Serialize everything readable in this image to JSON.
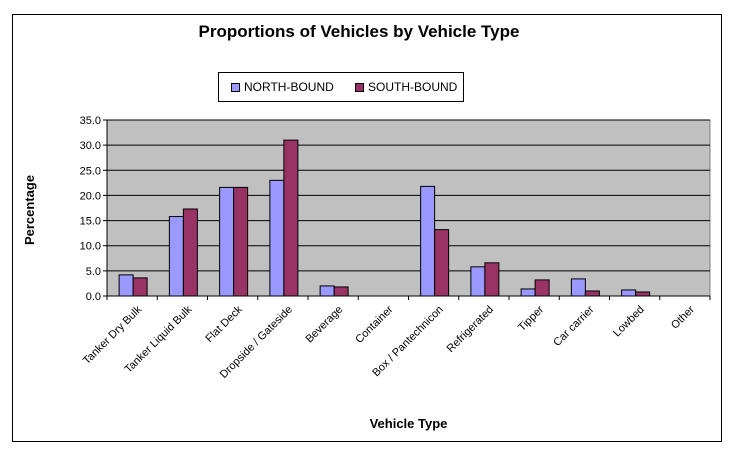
{
  "chart_data": {
    "type": "bar",
    "title": "Proportions of Vehicles by Vehicle Type",
    "xlabel": "Vehicle Type",
    "ylabel": "Percentage",
    "ylim": [
      0,
      35
    ],
    "yticks": [
      "0.0",
      "5.0",
      "10.0",
      "15.0",
      "20.0",
      "25.0",
      "30.0",
      "35.0"
    ],
    "grid": true,
    "legend_position": "top",
    "categories": [
      "Tanker Dry Bulk",
      "Tanker Liquid Bulk",
      "Flat Deck",
      "Dropside / Gateside",
      "Beverage",
      "Container",
      "Box / Pantechnicon",
      "Refrigerated",
      "Tipper",
      "Car carrier",
      "Lowbed",
      "Other"
    ],
    "series": [
      {
        "name": "NORTH-BOUND",
        "color": "#9999ff",
        "values": [
          4.2,
          15.8,
          21.6,
          23.0,
          2.0,
          0.0,
          21.8,
          5.8,
          1.4,
          3.4,
          1.2,
          0.0
        ]
      },
      {
        "name": "SOUTH-BOUND",
        "color": "#993366",
        "values": [
          3.6,
          17.3,
          21.6,
          31.0,
          1.8,
          0.0,
          13.2,
          6.6,
          3.2,
          1.0,
          0.8,
          0.0
        ]
      }
    ],
    "plot_background": "#c0c0c0"
  }
}
